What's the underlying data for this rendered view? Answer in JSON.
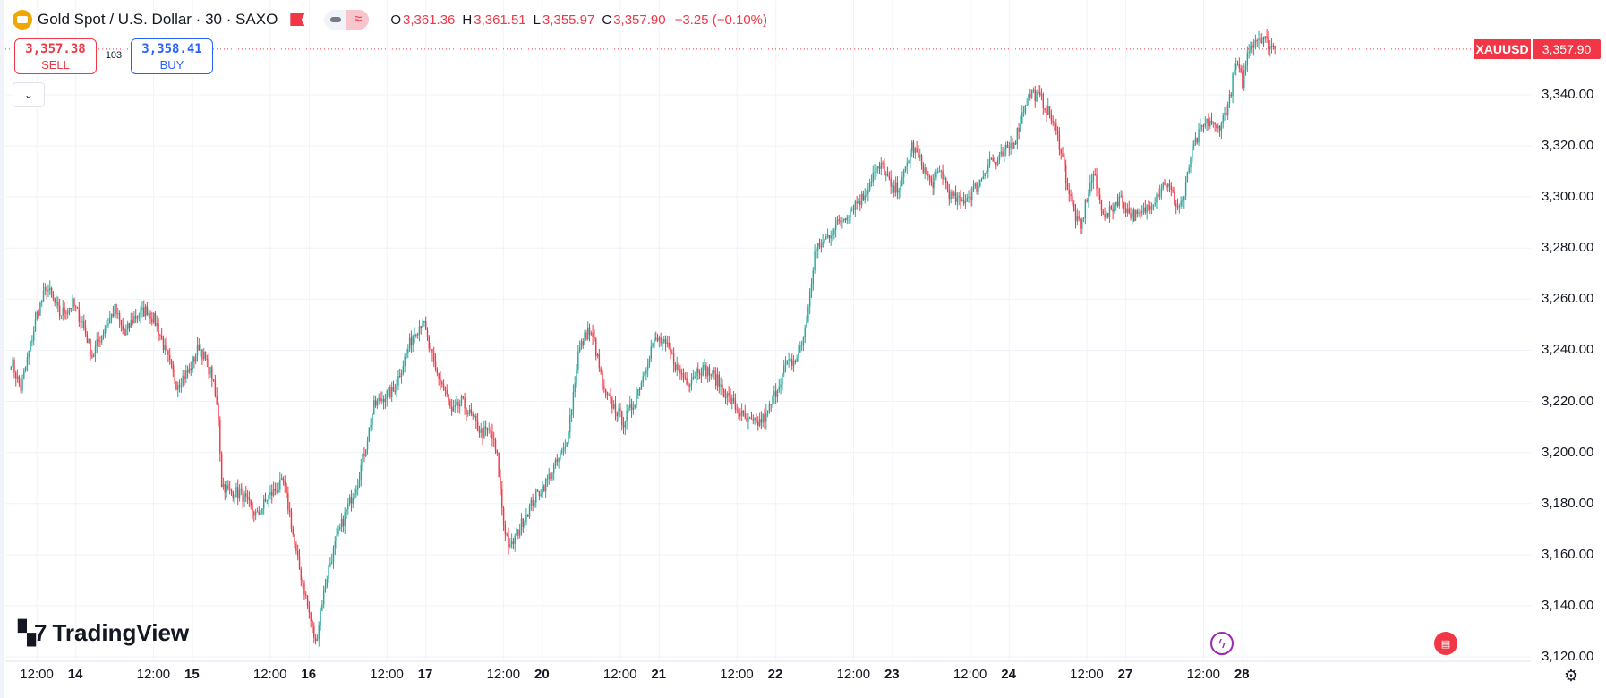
{
  "header": {
    "title": "Gold Spot / U.S. Dollar · 30 · SAXO",
    "ohlc": [
      {
        "key": "O",
        "value": "3,361.36"
      },
      {
        "key": "H",
        "value": "3,361.51"
      },
      {
        "key": "L",
        "value": "3,355.97"
      },
      {
        "key": "C",
        "value": "3,357.90"
      }
    ],
    "change": "−3.25 (−0.10%)"
  },
  "trade": {
    "sell_price": "3,357.38",
    "sell_label": "SELL",
    "buy_price": "3,358.41",
    "buy_label": "BUY",
    "spread": "103"
  },
  "last_price": {
    "symbol": "XAUUSD",
    "value": "3,357.90",
    "numeric": 3357.9
  },
  "brand": "TradingView",
  "colors": {
    "up": "#26a69a",
    "down": "#f23645",
    "buy": "#2962ff",
    "grid": "#f0f3fa"
  },
  "icons": {
    "event1": "lightning-icon",
    "event2": "us-flag-icon",
    "settings": "gear-icon",
    "collapse": "chevron-down-icon"
  },
  "chart_data": {
    "type": "candlestick",
    "title": "Gold Spot / U.S. Dollar · 30 · SAXO",
    "xlabel": "",
    "ylabel": "",
    "ylim": [
      3116,
      3366
    ],
    "y_ticks": [
      "3,120.00",
      "3,140.00",
      "3,160.00",
      "3,180.00",
      "3,200.00",
      "3,220.00",
      "3,240.00",
      "3,260.00",
      "3,280.00",
      "3,300.00",
      "3,320.00",
      "3,340.00"
    ],
    "x_ticks": [
      "12:00",
      "14",
      "12:00",
      "15",
      "12:00",
      "16",
      "12:00",
      "17",
      "12:00",
      "20",
      "12:00",
      "21",
      "12:00",
      "22",
      "12:00",
      "23",
      "12:00",
      "24",
      "12:00",
      "27",
      "12:00",
      "28"
    ],
    "grid": true,
    "anchors": [
      [
        0,
        3236
      ],
      [
        6,
        3225
      ],
      [
        12,
        3242
      ],
      [
        16,
        3254
      ],
      [
        22,
        3265
      ],
      [
        30,
        3254
      ],
      [
        38,
        3258
      ],
      [
        44,
        3251
      ],
      [
        50,
        3238
      ],
      [
        58,
        3249
      ],
      [
        64,
        3256
      ],
      [
        70,
        3246
      ],
      [
        76,
        3253
      ],
      [
        84,
        3256
      ],
      [
        90,
        3250
      ],
      [
        96,
        3238
      ],
      [
        102,
        3227
      ],
      [
        110,
        3232
      ],
      [
        116,
        3242
      ],
      [
        120,
        3236
      ],
      [
        124,
        3230
      ],
      [
        128,
        3214
      ],
      [
        130,
        3188
      ],
      [
        134,
        3185
      ],
      [
        142,
        3184
      ],
      [
        148,
        3178
      ],
      [
        152,
        3175
      ],
      [
        158,
        3182
      ],
      [
        164,
        3186
      ],
      [
        168,
        3188
      ],
      [
        172,
        3176
      ],
      [
        176,
        3160
      ],
      [
        180,
        3149
      ],
      [
        184,
        3137
      ],
      [
        188,
        3125
      ],
      [
        192,
        3142
      ],
      [
        196,
        3155
      ],
      [
        202,
        3168
      ],
      [
        208,
        3179
      ],
      [
        214,
        3189
      ],
      [
        218,
        3200
      ],
      [
        224,
        3218
      ],
      [
        230,
        3222
      ],
      [
        236,
        3224
      ],
      [
        242,
        3235
      ],
      [
        248,
        3246
      ],
      [
        254,
        3252
      ],
      [
        258,
        3241
      ],
      [
        262,
        3232
      ],
      [
        268,
        3224
      ],
      [
        272,
        3215
      ],
      [
        278,
        3220
      ],
      [
        284,
        3214
      ],
      [
        290,
        3208
      ],
      [
        296,
        3208
      ],
      [
        300,
        3198
      ],
      [
        304,
        3172
      ],
      [
        308,
        3162
      ],
      [
        312,
        3168
      ],
      [
        318,
        3176
      ],
      [
        324,
        3183
      ],
      [
        330,
        3188
      ],
      [
        336,
        3195
      ],
      [
        342,
        3202
      ],
      [
        346,
        3218
      ],
      [
        350,
        3239
      ],
      [
        356,
        3248
      ],
      [
        360,
        3243
      ],
      [
        366,
        3223
      ],
      [
        372,
        3218
      ],
      [
        378,
        3212
      ],
      [
        384,
        3219
      ],
      [
        390,
        3230
      ],
      [
        396,
        3243
      ],
      [
        400,
        3244
      ],
      [
        406,
        3240
      ],
      [
        412,
        3232
      ],
      [
        418,
        3228
      ],
      [
        424,
        3233
      ],
      [
        430,
        3232
      ],
      [
        436,
        3228
      ],
      [
        442,
        3222
      ],
      [
        448,
        3217
      ],
      [
        454,
        3212
      ],
      [
        460,
        3211
      ],
      [
        466,
        3214
      ],
      [
        472,
        3224
      ],
      [
        478,
        3234
      ],
      [
        484,
        3236
      ],
      [
        488,
        3242
      ],
      [
        492,
        3256
      ],
      [
        496,
        3278
      ],
      [
        502,
        3283
      ],
      [
        508,
        3288
      ],
      [
        514,
        3292
      ],
      [
        520,
        3297
      ],
      [
        526,
        3300
      ],
      [
        532,
        3309
      ],
      [
        538,
        3312
      ],
      [
        544,
        3302
      ],
      [
        550,
        3306
      ],
      [
        556,
        3320
      ],
      [
        562,
        3313
      ],
      [
        568,
        3305
      ],
      [
        574,
        3310
      ],
      [
        580,
        3300
      ],
      [
        586,
        3298
      ],
      [
        592,
        3301
      ],
      [
        598,
        3306
      ],
      [
        604,
        3315
      ],
      [
        608,
        3313
      ],
      [
        614,
        3318
      ],
      [
        620,
        3323
      ],
      [
        626,
        3337
      ],
      [
        630,
        3341
      ],
      [
        636,
        3338
      ],
      [
        642,
        3331
      ],
      [
        648,
        3319
      ],
      [
        652,
        3304
      ],
      [
        656,
        3294
      ],
      [
        660,
        3287
      ],
      [
        664,
        3300
      ],
      [
        668,
        3309
      ],
      [
        672,
        3298
      ],
      [
        676,
        3292
      ],
      [
        680,
        3296
      ],
      [
        684,
        3300
      ],
      [
        690,
        3294
      ],
      [
        696,
        3292
      ],
      [
        700,
        3295
      ],
      [
        706,
        3300
      ],
      [
        712,
        3306
      ],
      [
        716,
        3302
      ],
      [
        720,
        3296
      ],
      [
        724,
        3300
      ],
      [
        728,
        3316
      ],
      [
        734,
        3326
      ],
      [
        740,
        3330
      ],
      [
        744,
        3326
      ],
      [
        748,
        3331
      ],
      [
        752,
        3338
      ],
      [
        754,
        3346
      ],
      [
        756,
        3352
      ],
      [
        760,
        3345
      ],
      [
        764,
        3359
      ],
      [
        768,
        3362
      ],
      [
        772,
        3363
      ],
      [
        776,
        3360
      ],
      [
        780,
        3358
      ]
    ]
  },
  "axes": {
    "y": [
      {
        "label": "3,120.00",
        "v": 3120
      },
      {
        "label": "3,140.00",
        "v": 3140
      },
      {
        "label": "3,160.00",
        "v": 3160
      },
      {
        "label": "3,180.00",
        "v": 3180
      },
      {
        "label": "3,200.00",
        "v": 3200
      },
      {
        "label": "3,220.00",
        "v": 3220
      },
      {
        "label": "3,240.00",
        "v": 3240
      },
      {
        "label": "3,260.00",
        "v": 3260
      },
      {
        "label": "3,280.00",
        "v": 3280
      },
      {
        "label": "3,300.00",
        "v": 3300
      },
      {
        "label": "3,320.00",
        "v": 3320
      },
      {
        "label": "3,340.00",
        "v": 3340
      }
    ],
    "x": [
      {
        "label": "12:00",
        "t": 16
      },
      {
        "label": "14",
        "t": 40
      },
      {
        "label": "12:00",
        "t": 88
      },
      {
        "label": "15",
        "t": 112
      },
      {
        "label": "12:00",
        "t": 160
      },
      {
        "label": "16",
        "t": 184
      },
      {
        "label": "12:00",
        "t": 232
      },
      {
        "label": "17",
        "t": 256
      },
      {
        "label": "12:00",
        "t": 304
      },
      {
        "label": "20",
        "t": 328
      },
      {
        "label": "12:00",
        "t": 376
      },
      {
        "label": "21",
        "t": 400
      },
      {
        "label": "12:00",
        "t": 448
      },
      {
        "label": "22",
        "t": 472
      },
      {
        "label": "12:00",
        "t": 520
      },
      {
        "label": "23",
        "t": 544
      },
      {
        "label": "12:00",
        "t": 592
      },
      {
        "label": "24",
        "t": 616
      },
      {
        "label": "12:00",
        "t": 664
      },
      {
        "label": "27",
        "t": 688
      },
      {
        "label": "12:00",
        "t": 736
      },
      {
        "label": "28",
        "t": 760
      }
    ]
  }
}
